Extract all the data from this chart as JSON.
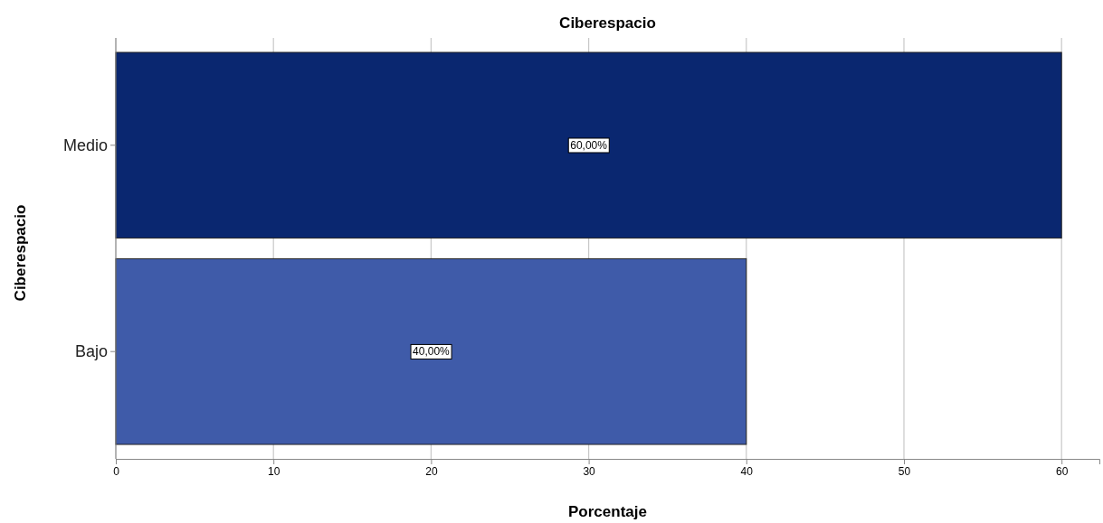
{
  "chart_data": {
    "type": "bar",
    "orientation": "horizontal",
    "title": "Ciberespacio",
    "xlabel": "Porcentaje",
    "ylabel": "Ciberespacio",
    "categories": [
      "Medio",
      "Bajo"
    ],
    "values": [
      60,
      40
    ],
    "colors": [
      "#0a2770",
      "#3f5ba9"
    ],
    "value_labels": [
      "60,00%",
      "40,00%"
    ],
    "xlim": [
      0,
      62.4
    ],
    "xticks": [
      0,
      10,
      20,
      30,
      40,
      50,
      60
    ],
    "grid": "x"
  }
}
